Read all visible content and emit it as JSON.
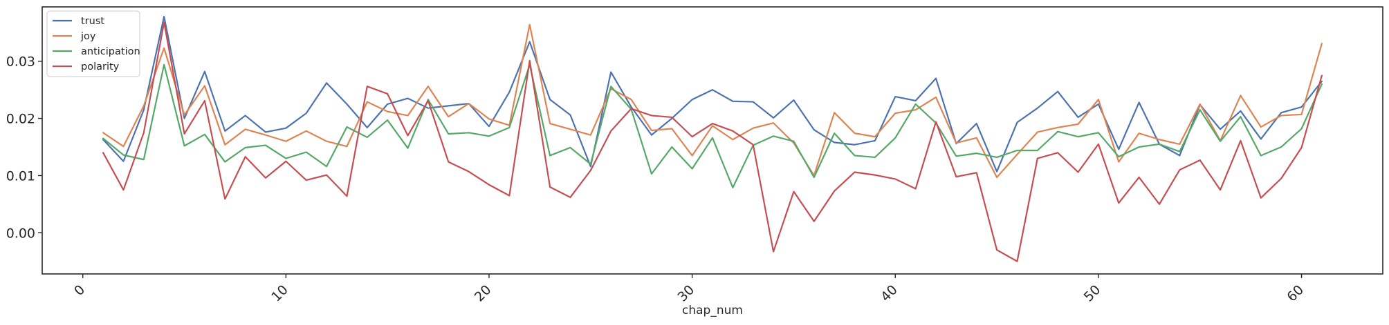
{
  "chart_data": {
    "type": "line",
    "title": "",
    "xlabel": "chap_num",
    "ylabel": "",
    "xlim": [
      -2,
      64
    ],
    "ylim": [
      -0.0072,
      0.0395
    ],
    "xticks": [
      0,
      10,
      20,
      30,
      40,
      50,
      60
    ],
    "yticks": [
      0.0,
      0.01,
      0.02,
      0.03
    ],
    "ytick_labels": [
      "0.00",
      "0.01",
      "0.02",
      "0.03"
    ],
    "grid": false,
    "legend_position": "top-left",
    "x": [
      1,
      2,
      3,
      4,
      5,
      6,
      7,
      8,
      9,
      10,
      11,
      12,
      13,
      14,
      15,
      16,
      17,
      18,
      19,
      20,
      21,
      22,
      23,
      24,
      25,
      26,
      27,
      28,
      29,
      30,
      31,
      32,
      33,
      34,
      35,
      36,
      37,
      38,
      39,
      40,
      41,
      42,
      43,
      44,
      45,
      46,
      47,
      48,
      49,
      50,
      51,
      52,
      53,
      54,
      55,
      56,
      57,
      58,
      59,
      60,
      61
    ],
    "series": [
      {
        "name": "trust",
        "color": "#4c72b0",
        "values": [
          0.0163,
          0.0125,
          0.0215,
          0.0378,
          0.02,
          0.0282,
          0.0178,
          0.0205,
          0.0176,
          0.0183,
          0.0209,
          0.0262,
          0.0225,
          0.0184,
          0.0225,
          0.0235,
          0.0218,
          0.0222,
          0.0226,
          0.0186,
          0.0246,
          0.0334,
          0.0233,
          0.0206,
          0.0116,
          0.0281,
          0.022,
          0.0171,
          0.02,
          0.0233,
          0.025,
          0.023,
          0.0229,
          0.0201,
          0.0232,
          0.018,
          0.0158,
          0.0154,
          0.0161,
          0.0238,
          0.0231,
          0.027,
          0.0156,
          0.0191,
          0.0107,
          0.0193,
          0.0218,
          0.0247,
          0.0202,
          0.0225,
          0.0146,
          0.0228,
          0.0155,
          0.0135,
          0.0224,
          0.0181,
          0.0213,
          0.0164,
          0.021,
          0.022,
          0.0265
        ]
      },
      {
        "name": "joy",
        "color": "#dd8452",
        "values": [
          0.0175,
          0.0151,
          0.0222,
          0.0323,
          0.0206,
          0.0257,
          0.0154,
          0.0181,
          0.0171,
          0.016,
          0.0178,
          0.016,
          0.0151,
          0.0229,
          0.0212,
          0.0205,
          0.0256,
          0.0203,
          0.0226,
          0.0199,
          0.0188,
          0.0364,
          0.0191,
          0.0181,
          0.0171,
          0.0252,
          0.0233,
          0.0179,
          0.0182,
          0.0135,
          0.0187,
          0.0163,
          0.0183,
          0.0192,
          0.0157,
          0.01,
          0.021,
          0.0174,
          0.0168,
          0.0209,
          0.0215,
          0.0237,
          0.0157,
          0.0166,
          0.0097,
          0.0137,
          0.0176,
          0.0184,
          0.019,
          0.0233,
          0.0124,
          0.0174,
          0.0163,
          0.0155,
          0.0225,
          0.0161,
          0.024,
          0.0185,
          0.0205,
          0.0207,
          0.0331
        ]
      },
      {
        "name": "anticipation",
        "color": "#55a868",
        "values": [
          0.0165,
          0.0136,
          0.0128,
          0.0294,
          0.0152,
          0.0172,
          0.0124,
          0.0149,
          0.0153,
          0.013,
          0.0141,
          0.0116,
          0.0185,
          0.0167,
          0.0197,
          0.0148,
          0.0233,
          0.0173,
          0.0175,
          0.0169,
          0.0184,
          0.0294,
          0.0135,
          0.0149,
          0.012,
          0.0256,
          0.0216,
          0.0103,
          0.015,
          0.0112,
          0.0166,
          0.0079,
          0.0153,
          0.0169,
          0.016,
          0.0097,
          0.0174,
          0.0135,
          0.0132,
          0.0166,
          0.0225,
          0.0192,
          0.0134,
          0.0139,
          0.0132,
          0.0144,
          0.0144,
          0.0177,
          0.0168,
          0.0175,
          0.0133,
          0.015,
          0.0155,
          0.0142,
          0.0215,
          0.016,
          0.0203,
          0.0135,
          0.015,
          0.0182,
          0.026
        ]
      },
      {
        "name": "polarity",
        "color": "#c44e52",
        "values": [
          0.014,
          0.0075,
          0.0175,
          0.0368,
          0.0173,
          0.0231,
          0.0059,
          0.0133,
          0.0096,
          0.0125,
          0.0092,
          0.0101,
          0.0064,
          0.0256,
          0.0243,
          0.017,
          0.0231,
          0.0124,
          0.0107,
          0.0084,
          0.0065,
          0.0301,
          0.008,
          0.0062,
          0.0109,
          0.0178,
          0.0217,
          0.0205,
          0.0202,
          0.0168,
          0.0191,
          0.0178,
          0.0154,
          -0.0033,
          0.0072,
          0.002,
          0.0073,
          0.0106,
          0.0101,
          0.0094,
          0.0077,
          0.0194,
          0.0098,
          0.0105,
          -0.003,
          -0.005,
          0.013,
          0.014,
          0.0106,
          0.0155,
          0.0052,
          0.0097,
          0.005,
          0.011,
          0.0127,
          0.0075,
          0.0161,
          0.0061,
          0.0095,
          0.0149,
          0.0275
        ]
      }
    ]
  }
}
